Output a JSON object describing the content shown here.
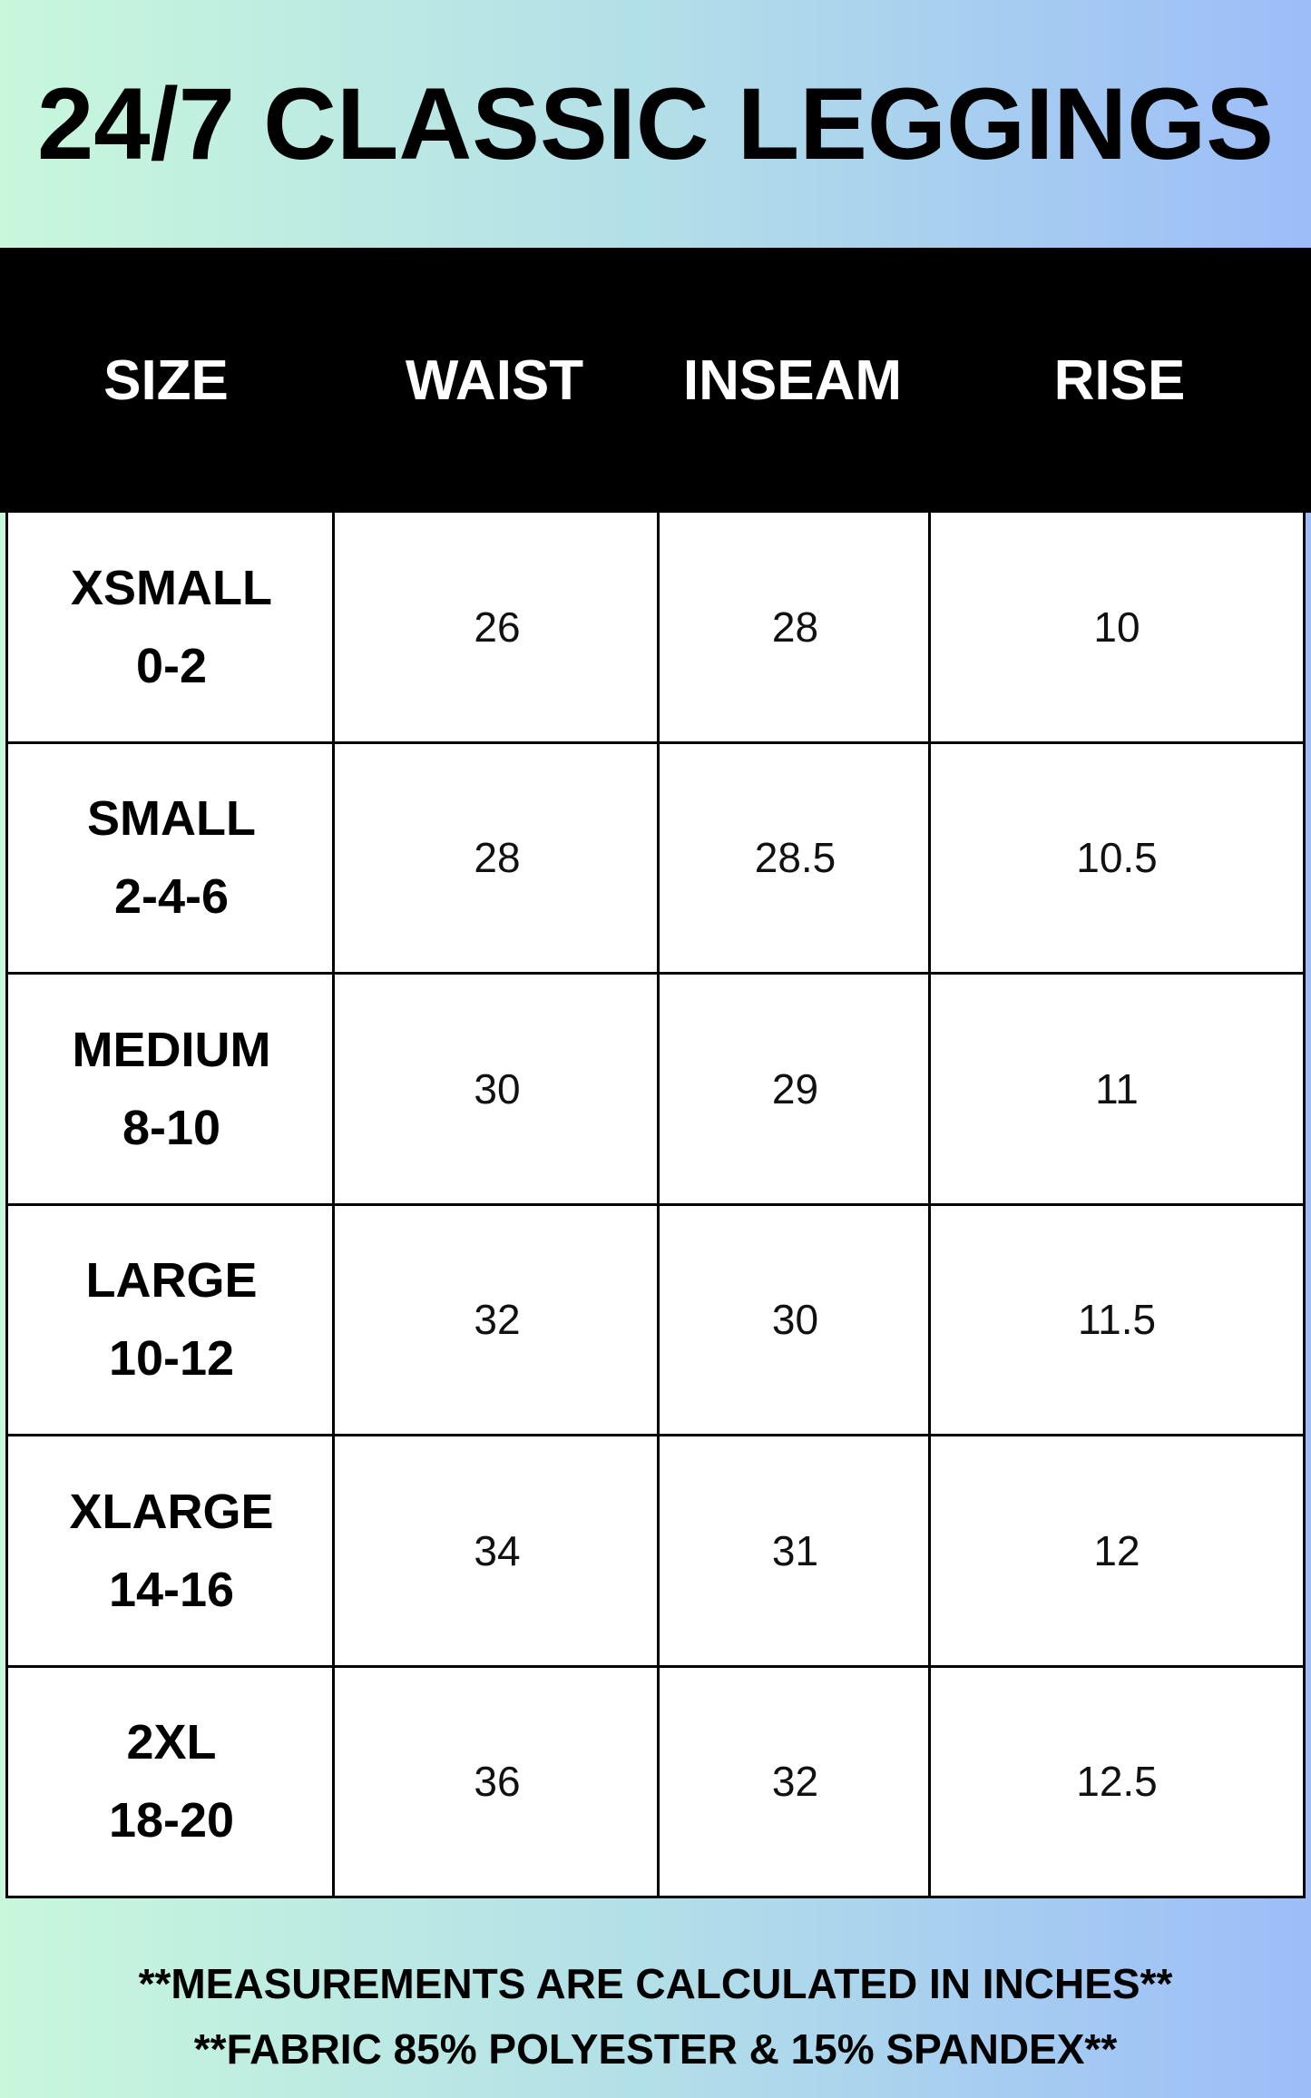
{
  "title": "24/7 CLASSIC LEGGINGS",
  "table": {
    "header": [
      "SIZE",
      "WAIST",
      "INSEAM",
      "RISE"
    ],
    "rows": [
      [
        {
          "name": "XSMALL",
          "range": "0-2"
        },
        "26",
        "28",
        "10"
      ],
      [
        {
          "name": "SMALL",
          "range": "2-4-6"
        },
        "28",
        "28.5",
        "10.5"
      ],
      [
        {
          "name": "MEDIUM",
          "range": "8-10"
        },
        "30",
        "29",
        "11"
      ],
      [
        {
          "name": "LARGE",
          "range": "10-12"
        },
        "32",
        "30",
        "11.5"
      ],
      [
        {
          "name": "XLARGE",
          "range": "14-16"
        },
        "34",
        "31",
        "12"
      ],
      [
        {
          "name": "2XL",
          "range": "18-20"
        },
        "36",
        "32",
        "12.5"
      ]
    ]
  },
  "footer": [
    "**MEASUREMENTS ARE CALCULATED IN INCHES**",
    "**FABRIC 85% POLYESTER & 15% SPANDEX**"
  ]
}
